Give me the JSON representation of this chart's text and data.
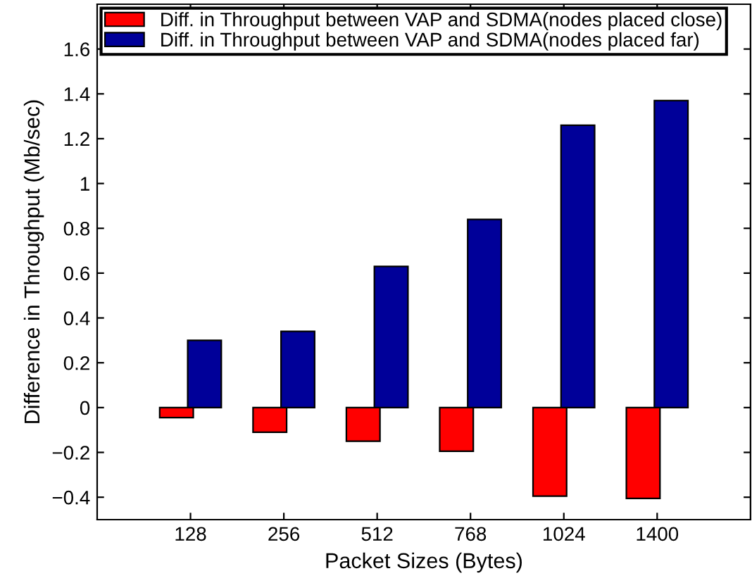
{
  "chart_data": {
    "type": "bar",
    "xlabel": "Packet Sizes (Bytes)",
    "ylabel": "Difference in Throughput (Mb/sec)",
    "categories": [
      "128",
      "256",
      "512",
      "768",
      "1024",
      "1400"
    ],
    "series": [
      {
        "name": "Diff. in Throughput between VAP and SDMA(nodes placed close)",
        "color": "#ff0000",
        "values": [
          -0.045,
          -0.11,
          -0.15,
          -0.195,
          -0.395,
          -0.405
        ]
      },
      {
        "name": "Diff. in Throughput between VAP and SDMA(nodes placed far)",
        "color": "#000099",
        "values": [
          0.3,
          0.34,
          0.63,
          0.84,
          1.26,
          1.37
        ]
      }
    ],
    "ylim": [
      -0.5,
      1.8
    ],
    "yticks": [
      {
        "value": -0.4,
        "label": "−0.4"
      },
      {
        "value": -0.2,
        "label": "−0.2"
      },
      0,
      0.2,
      0.4,
      0.6,
      0.8,
      1,
      1.2,
      1.4,
      1.6
    ],
    "grid": false,
    "legend": "top left"
  }
}
